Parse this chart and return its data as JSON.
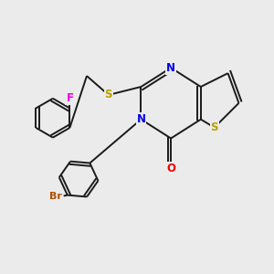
{
  "bg_color": "#ebebeb",
  "bond_color": "#1a1a1a",
  "bond_width": 1.4,
  "atom_colors": {
    "S": "#b8a000",
    "N": "#0000ee",
    "O": "#ee0000",
    "F": "#ee00ee",
    "Br": "#b05000",
    "C": "#1a1a1a"
  },
  "font_size": 8.5,
  "dbo": 0.12
}
